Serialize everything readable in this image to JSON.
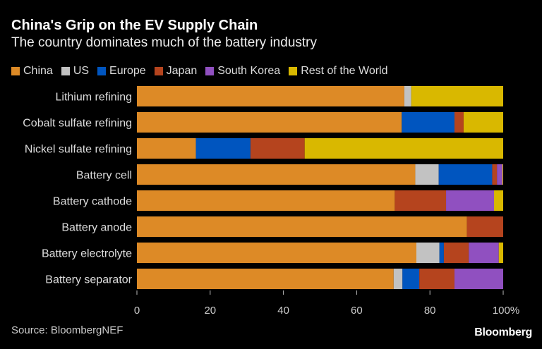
{
  "title": "China's Grip on the EV Supply Chain",
  "subtitle": "The country dominates much of the battery industry",
  "source": "Source: BloombergNEF",
  "logo": "Bloomberg",
  "chart_data": {
    "type": "bar",
    "orientation": "horizontal",
    "stacked": true,
    "title": "China's Grip on the EV Supply Chain",
    "subtitle": "The country dominates much of the battery industry",
    "legend_position": "top",
    "grid": false,
    "xlim": [
      0,
      100
    ],
    "x_ticks": [
      "0",
      "20",
      "40",
      "60",
      "80",
      "100%"
    ],
    "categories": [
      "Lithium refining",
      "Cobalt sulfate refining",
      "Nickel sulfate refining",
      "Battery cell",
      "Battery cathode",
      "Battery anode",
      "Battery electrolyte",
      "Battery separator"
    ],
    "series": [
      {
        "name": "China",
        "color": "#dd8a26",
        "values": [
          73,
          72.3,
          16.1,
          76,
          70.4,
          90.1,
          76.3,
          70.1
        ]
      },
      {
        "name": "US",
        "color": "#c2c2c2",
        "values": [
          1.9,
          0,
          0,
          6.4,
          0,
          0,
          6.3,
          2.4
        ]
      },
      {
        "name": "Europe",
        "color": "#0055bf",
        "values": [
          0,
          14.4,
          14.9,
          14.6,
          0,
          0,
          1.2,
          4.6
        ]
      },
      {
        "name": "Japan",
        "color": "#b5441e",
        "values": [
          0,
          2.5,
          14.8,
          1.3,
          14,
          9.9,
          6.8,
          9.6
        ]
      },
      {
        "name": "South Korea",
        "color": "#9050c0",
        "values": [
          0,
          0,
          0,
          1.5,
          13.1,
          0,
          8.2,
          13.3
        ]
      },
      {
        "name": "Rest of the World",
        "color": "#d9b800",
        "values": [
          25.1,
          10.8,
          54.2,
          0.2,
          2.5,
          0,
          1.2,
          0
        ]
      }
    ]
  }
}
